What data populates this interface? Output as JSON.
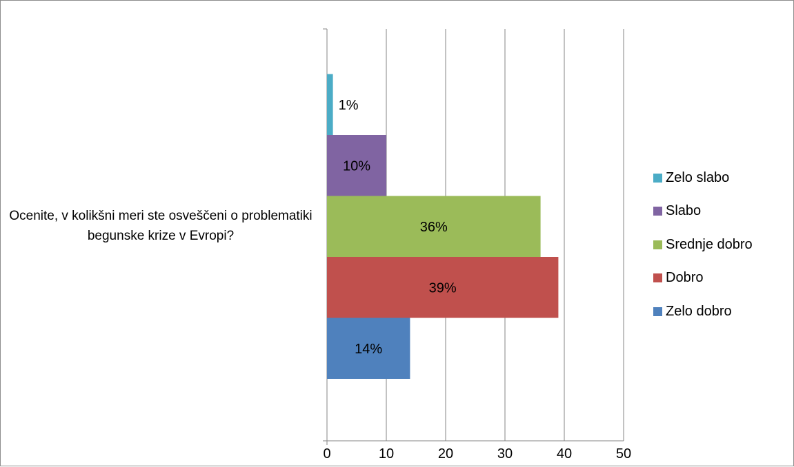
{
  "chart_data": {
    "type": "bar",
    "orientation": "horizontal",
    "category": "Ocenite, v kolikšni meri ste osveščeni o problematiki begunske krize v Evropi?",
    "series": [
      {
        "name": "Zelo slabo",
        "value": 1,
        "label": "1%",
        "color": "#4BACC6"
      },
      {
        "name": "Slabo",
        "value": 10,
        "label": "10%",
        "color": "#8064A2"
      },
      {
        "name": "Srednje dobro",
        "value": 36,
        "label": "36%",
        "color": "#9BBB59"
      },
      {
        "name": "Dobro",
        "value": 39,
        "label": "39%",
        "color": "#C0504D"
      },
      {
        "name": "Zelo dobro",
        "value": 14,
        "label": "14%",
        "color": "#4F81BD"
      }
    ],
    "xlim": [
      0,
      50
    ],
    "xticks": [
      "0",
      "10",
      "20",
      "30",
      "40",
      "50"
    ],
    "grid": true,
    "legend_position": "right"
  }
}
